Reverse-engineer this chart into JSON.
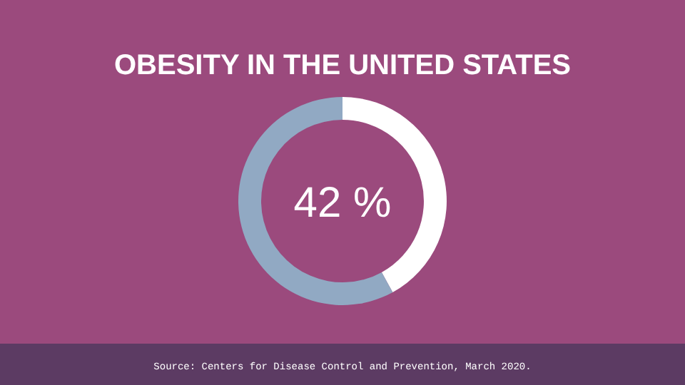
{
  "chart_data": {
    "type": "donut",
    "title": "OBESITY IN THE UNITED STATES",
    "categories": [
      null,
      null
    ],
    "values": [
      42,
      58
    ],
    "colors": [
      "#ffffff",
      "#91a9c3"
    ],
    "annotations": [
      "42 %",
      "Source: Centers for Disease Control and Prevention, March 2020."
    ]
  }
}
